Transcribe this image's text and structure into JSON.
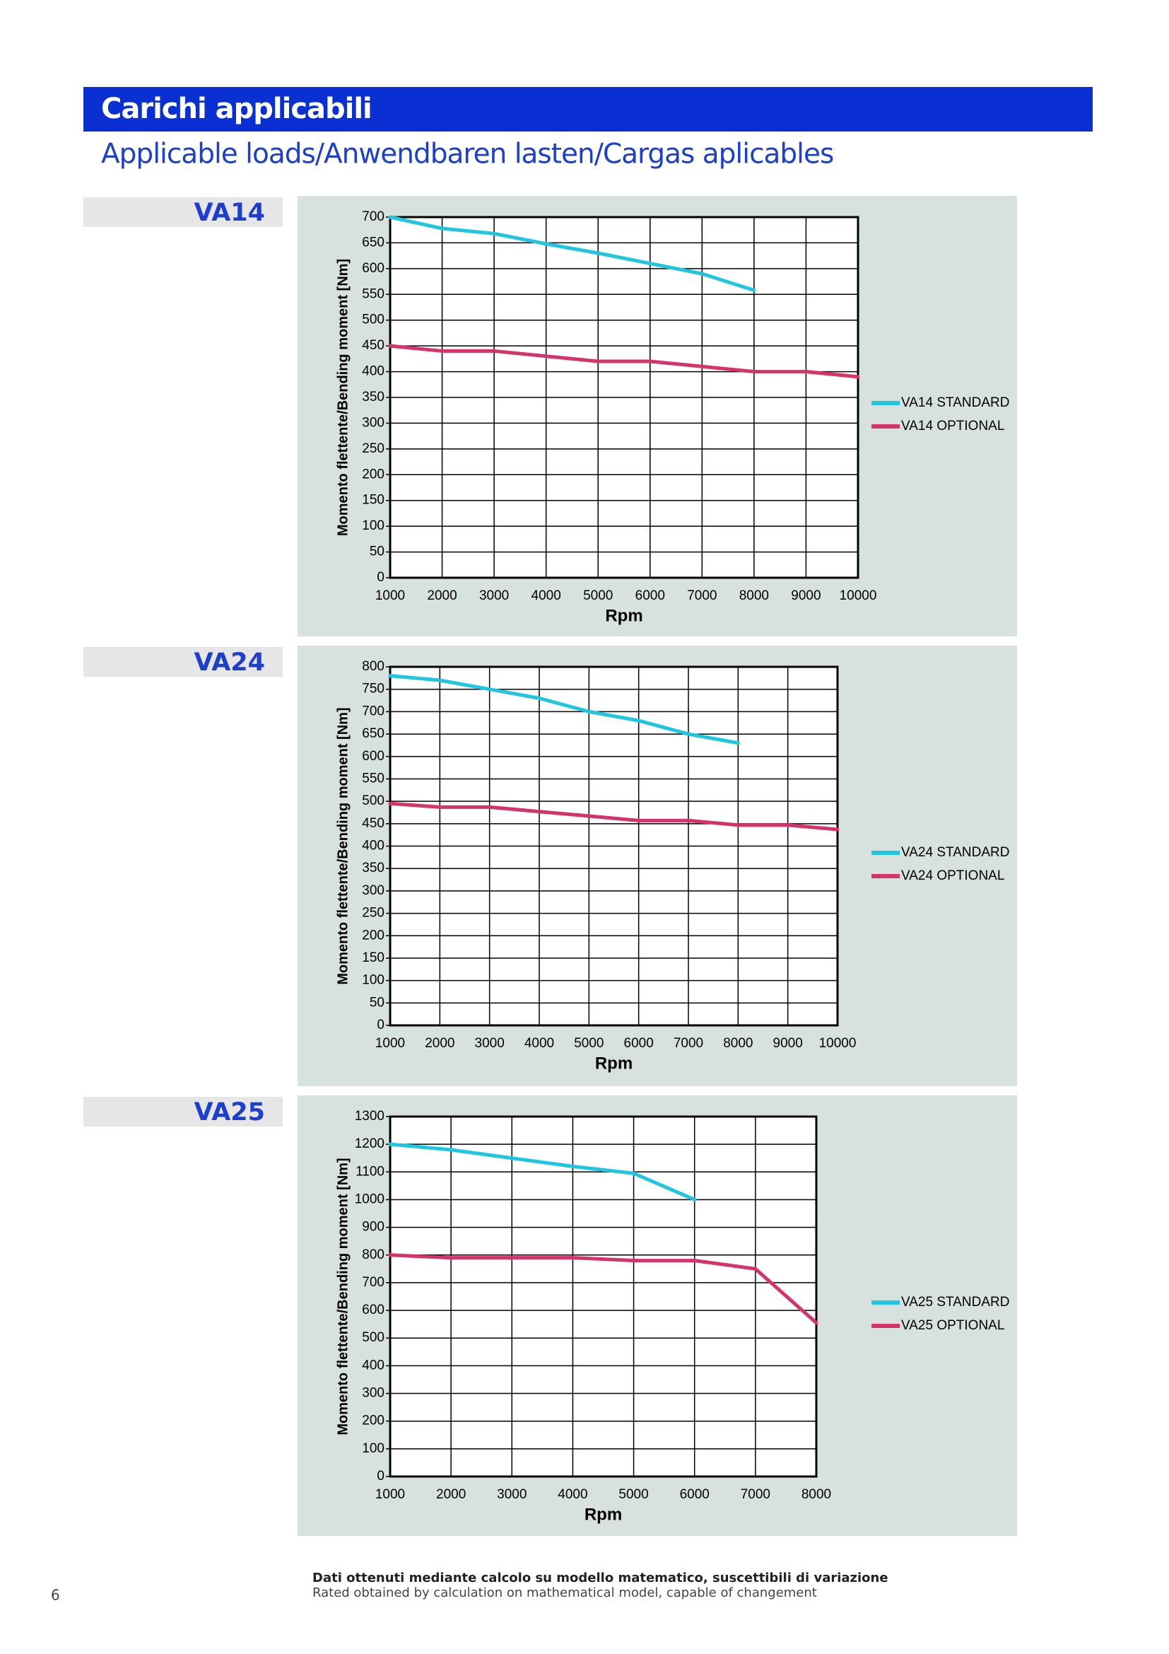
{
  "header": {
    "title": "Carichi applicabili",
    "subtitle": "Applicable loads/Anwendbaren lasten/Cargas aplicables"
  },
  "sections": [
    "VA14",
    "VA24",
    "VA25"
  ],
  "chart_data": [
    {
      "type": "line",
      "xlabel": "Rpm",
      "ylabel": "Momento flettente/Bending moment [Nm]",
      "x": [
        1000,
        2000,
        3000,
        4000,
        5000,
        6000,
        7000,
        8000,
        9000,
        10000
      ],
      "xlim": [
        1000,
        10000
      ],
      "xticks": [
        1000,
        2000,
        3000,
        4000,
        5000,
        6000,
        7000,
        8000,
        9000,
        10000
      ],
      "ylim": [
        0,
        700
      ],
      "yticks": [
        0,
        50,
        100,
        150,
        200,
        250,
        300,
        350,
        400,
        450,
        500,
        550,
        600,
        650,
        700
      ],
      "grid": true,
      "legend": "right",
      "series": [
        {
          "name": "VA14 STANDARD",
          "color": "#1ec6e2",
          "values": [
            700,
            678,
            668,
            648,
            630,
            610,
            590,
            558,
            null,
            null
          ]
        },
        {
          "name": "VA14 OPTIONAL",
          "color": "#d6336b",
          "values": [
            450,
            440,
            440,
            430,
            420,
            420,
            410,
            400,
            400,
            390
          ]
        }
      ]
    },
    {
      "type": "line",
      "xlabel": "Rpm",
      "ylabel": "Momento flettente/Bending moment [Nm]",
      "x": [
        1000,
        2000,
        3000,
        4000,
        5000,
        6000,
        7000,
        8000,
        9000,
        10000
      ],
      "xlim": [
        1000,
        10000
      ],
      "xticks": [
        1000,
        2000,
        3000,
        4000,
        5000,
        6000,
        7000,
        8000,
        9000,
        10000
      ],
      "ylim": [
        0,
        800
      ],
      "yticks": [
        0,
        50,
        100,
        150,
        200,
        250,
        300,
        350,
        400,
        450,
        500,
        550,
        600,
        650,
        700,
        750,
        800
      ],
      "grid": true,
      "legend": "right",
      "series": [
        {
          "name": "VA24 STANDARD",
          "color": "#1ec6e2",
          "values": [
            780,
            770,
            750,
            730,
            700,
            680,
            650,
            630,
            null,
            null
          ]
        },
        {
          "name": "VA24 OPTIONAL",
          "color": "#d6336b",
          "values": [
            495,
            487,
            487,
            477,
            467,
            457,
            457,
            447,
            447,
            437
          ]
        }
      ]
    },
    {
      "type": "line",
      "xlabel": "Rpm",
      "ylabel": "Momento flettente/Bending moment [Nm]",
      "x": [
        1000,
        2000,
        3000,
        4000,
        5000,
        6000,
        7000,
        8000
      ],
      "xlim": [
        1000,
        8000
      ],
      "xticks": [
        1000,
        2000,
        3000,
        4000,
        5000,
        6000,
        7000,
        8000
      ],
      "ylim": [
        0,
        1300
      ],
      "yticks": [
        0,
        100,
        200,
        300,
        400,
        500,
        600,
        700,
        800,
        900,
        1000,
        1100,
        1200,
        1300
      ],
      "grid": true,
      "legend": "right",
      "series": [
        {
          "name": "VA25 STANDARD",
          "color": "#1ec6e2",
          "values": [
            1200,
            1180,
            1150,
            1120,
            1095,
            1000,
            null,
            null
          ]
        },
        {
          "name": "VA25 OPTIONAL",
          "color": "#d6336b",
          "values": [
            800,
            790,
            790,
            790,
            780,
            780,
            750,
            555
          ]
        }
      ]
    }
  ],
  "footer": {
    "line1": "Dati ottenuti mediante calcolo su modello matematico, suscettibili di variazione",
    "line2": "Rated obtained by calculation on mathematical model, capable of changement",
    "page": "6"
  }
}
